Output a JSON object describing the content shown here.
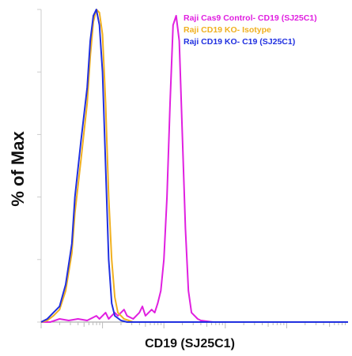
{
  "chart_data": {
    "type": "histogram",
    "xlabel": "CD19 (SJ25C1)",
    "ylabel": "% of Max",
    "x_scale": "log",
    "xlim": [
      0,
      100
    ],
    "ylim": [
      0,
      100
    ],
    "legend_placement": "top-right",
    "grid": false,
    "series": [
      {
        "name": "Raji Cas9 Control- CD19 (SJ25C1)",
        "color": "#e020e0",
        "points": [
          [
            0,
            0
          ],
          [
            3,
            0
          ],
          [
            6,
            1
          ],
          [
            9,
            0.5
          ],
          [
            12,
            1
          ],
          [
            15,
            0.5
          ],
          [
            18,
            2
          ],
          [
            19,
            1
          ],
          [
            21,
            3
          ],
          [
            22,
            1
          ],
          [
            24,
            3
          ],
          [
            25,
            2
          ],
          [
            27,
            4
          ],
          [
            28,
            2
          ],
          [
            30,
            1
          ],
          [
            32,
            3
          ],
          [
            33,
            5
          ],
          [
            34,
            2
          ],
          [
            36,
            4
          ],
          [
            37,
            3
          ],
          [
            38,
            6
          ],
          [
            39,
            10
          ],
          [
            40,
            20
          ],
          [
            41,
            40
          ],
          [
            42,
            70
          ],
          [
            43,
            95
          ],
          [
            44,
            98
          ],
          [
            45,
            90
          ],
          [
            46,
            60
          ],
          [
            47,
            30
          ],
          [
            48,
            10
          ],
          [
            49,
            3
          ],
          [
            51,
            1
          ],
          [
            52,
            0.5
          ],
          [
            56,
            0
          ],
          [
            65,
            0
          ],
          [
            80,
            0
          ],
          [
            100,
            0
          ]
        ]
      },
      {
        "name": "Raji CD19 KO- Isotype",
        "color": "#f0b020",
        "points": [
          [
            0,
            0
          ],
          [
            2,
            0.5
          ],
          [
            4,
            2
          ],
          [
            6,
            4
          ],
          [
            8,
            10
          ],
          [
            10,
            22
          ],
          [
            11,
            35
          ],
          [
            13,
            52
          ],
          [
            15,
            70
          ],
          [
            16,
            85
          ],
          [
            17,
            96
          ],
          [
            18,
            100
          ],
          [
            19,
            99
          ],
          [
            20,
            92
          ],
          [
            21,
            70
          ],
          [
            22,
            40
          ],
          [
            23,
            20
          ],
          [
            24,
            8
          ],
          [
            25,
            3
          ],
          [
            27,
            1
          ],
          [
            30,
            0
          ],
          [
            40,
            0
          ],
          [
            100,
            0
          ]
        ]
      },
      {
        "name": "Raji CD19 KO- C19 (SJ25C1)",
        "color": "#2030e0",
        "points": [
          [
            0,
            0
          ],
          [
            2,
            1
          ],
          [
            4,
            3
          ],
          [
            6,
            5
          ],
          [
            8,
            12
          ],
          [
            10,
            25
          ],
          [
            11,
            40
          ],
          [
            13,
            58
          ],
          [
            15,
            75
          ],
          [
            16,
            90
          ],
          [
            17,
            98
          ],
          [
            18,
            100
          ],
          [
            19,
            95
          ],
          [
            20,
            80
          ],
          [
            21,
            50
          ],
          [
            22,
            20
          ],
          [
            23,
            6
          ],
          [
            24,
            2
          ],
          [
            26,
            0.5
          ],
          [
            28,
            0
          ],
          [
            40,
            0
          ],
          [
            100,
            0
          ]
        ]
      }
    ]
  }
}
